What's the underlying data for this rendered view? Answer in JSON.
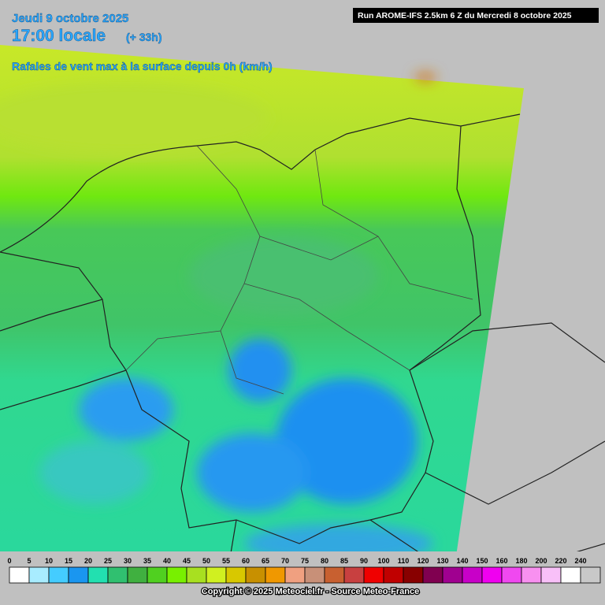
{
  "header": {
    "date": "Jeudi 9 octobre 2025",
    "time": "17:00 locale",
    "lead": "(+ 33h)",
    "subtitle": "Rafales de vent max à la surface depuis 0h (km/h)",
    "run": "Run AROME-IFS 2.5km 6 Z du Mercredi 8 octobre 2025"
  },
  "legend": {
    "labels": [
      "0",
      "5",
      "10",
      "15",
      "20",
      "25",
      "30",
      "35",
      "40",
      "45",
      "50",
      "55",
      "60",
      "65",
      "70",
      "75",
      "80",
      "85",
      "90",
      "100",
      "110",
      "120",
      "130",
      "140",
      "150",
      "160",
      "180",
      "200",
      "220",
      "240"
    ],
    "colors": [
      "#ffffff",
      "#a8ecff",
      "#44ccff",
      "#1a96f0",
      "#22e0b0",
      "#30c070",
      "#40b040",
      "#50d020",
      "#78f000",
      "#a8e020",
      "#d0f020",
      "#d8c800",
      "#c89000",
      "#f09800",
      "#f0a080",
      "#c89078",
      "#c86030",
      "#c84040",
      "#f00000",
      "#c00000",
      "#880000",
      "#800050",
      "#a00090",
      "#c800c8",
      "#f000f0",
      "#f048f0",
      "#f890f0",
      "#f8c0f8",
      "#ffffff",
      "#c8c8c8"
    ]
  },
  "footer": {
    "copyright": "Copyright © 2025 Meteociel.fr - Source Meteo-France"
  }
}
